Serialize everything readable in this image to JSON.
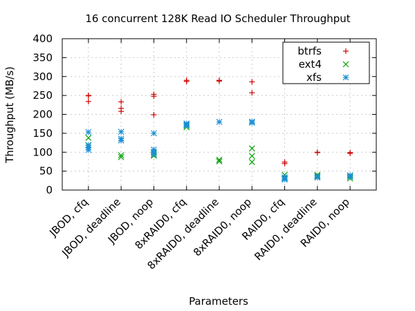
{
  "chart_data": {
    "type": "scatter",
    "title": "16 concurrent 128K Read IO Scheduler Throughput",
    "xlabel": "Parameters",
    "ylabel": "Throughput (MB/s)",
    "ylim": [
      0,
      400
    ],
    "yticks": [
      0,
      50,
      100,
      150,
      200,
      250,
      300,
      350,
      400
    ],
    "categories": [
      "JBOD, cfq",
      "JBOD, deadline",
      "JBOD, noop",
      "8xRAID0, cfq",
      "8xRAID0, deadline",
      "8xRAID0, noop",
      "RAID0, cfq",
      "RAID0, deadline",
      "RAID0, noop"
    ],
    "grid": true,
    "legend_position": "top-right",
    "series": [
      {
        "name": "btrfs",
        "color": "#d00000",
        "marker": "plus",
        "points": [
          [
            0,
            250
          ],
          [
            0,
            249
          ],
          [
            0,
            234
          ],
          [
            1,
            233
          ],
          [
            1,
            216
          ],
          [
            1,
            208
          ],
          [
            2,
            253
          ],
          [
            2,
            248
          ],
          [
            2,
            199
          ],
          [
            3,
            290
          ],
          [
            3,
            287
          ],
          [
            4,
            290
          ],
          [
            4,
            288
          ],
          [
            5,
            286
          ],
          [
            5,
            257
          ],
          [
            6,
            74
          ],
          [
            6,
            70
          ],
          [
            7,
            100
          ],
          [
            7,
            99
          ],
          [
            8,
            99
          ],
          [
            8,
            97
          ]
        ]
      },
      {
        "name": "ext4",
        "color": "#00a000",
        "marker": "cross",
        "points": [
          [
            0,
            138
          ],
          [
            0,
            118
          ],
          [
            1,
            92
          ],
          [
            1,
            87
          ],
          [
            2,
            98
          ],
          [
            2,
            91
          ],
          [
            3,
            170
          ],
          [
            3,
            166
          ],
          [
            4,
            80
          ],
          [
            4,
            76
          ],
          [
            5,
            110
          ],
          [
            5,
            90
          ],
          [
            5,
            74
          ],
          [
            6,
            40
          ],
          [
            6,
            31
          ],
          [
            7,
            40
          ],
          [
            7,
            36
          ],
          [
            8,
            38
          ],
          [
            8,
            31
          ]
        ]
      },
      {
        "name": "xfs",
        "color": "#1a8fd6",
        "marker": "star",
        "points": [
          [
            0,
            153
          ],
          [
            0,
            119
          ],
          [
            0,
            112
          ],
          [
            0,
            106
          ],
          [
            1,
            154
          ],
          [
            1,
            136
          ],
          [
            1,
            131
          ],
          [
            2,
            150
          ],
          [
            2,
            107
          ],
          [
            2,
            101
          ],
          [
            2,
            94
          ],
          [
            3,
            176
          ],
          [
            3,
            173
          ],
          [
            3,
            171
          ],
          [
            4,
            180
          ],
          [
            5,
            181
          ],
          [
            5,
            178
          ],
          [
            6,
            34
          ],
          [
            6,
            30
          ],
          [
            6,
            28
          ],
          [
            7,
            37
          ],
          [
            7,
            33
          ],
          [
            8,
            39
          ],
          [
            8,
            35
          ]
        ]
      }
    ]
  }
}
